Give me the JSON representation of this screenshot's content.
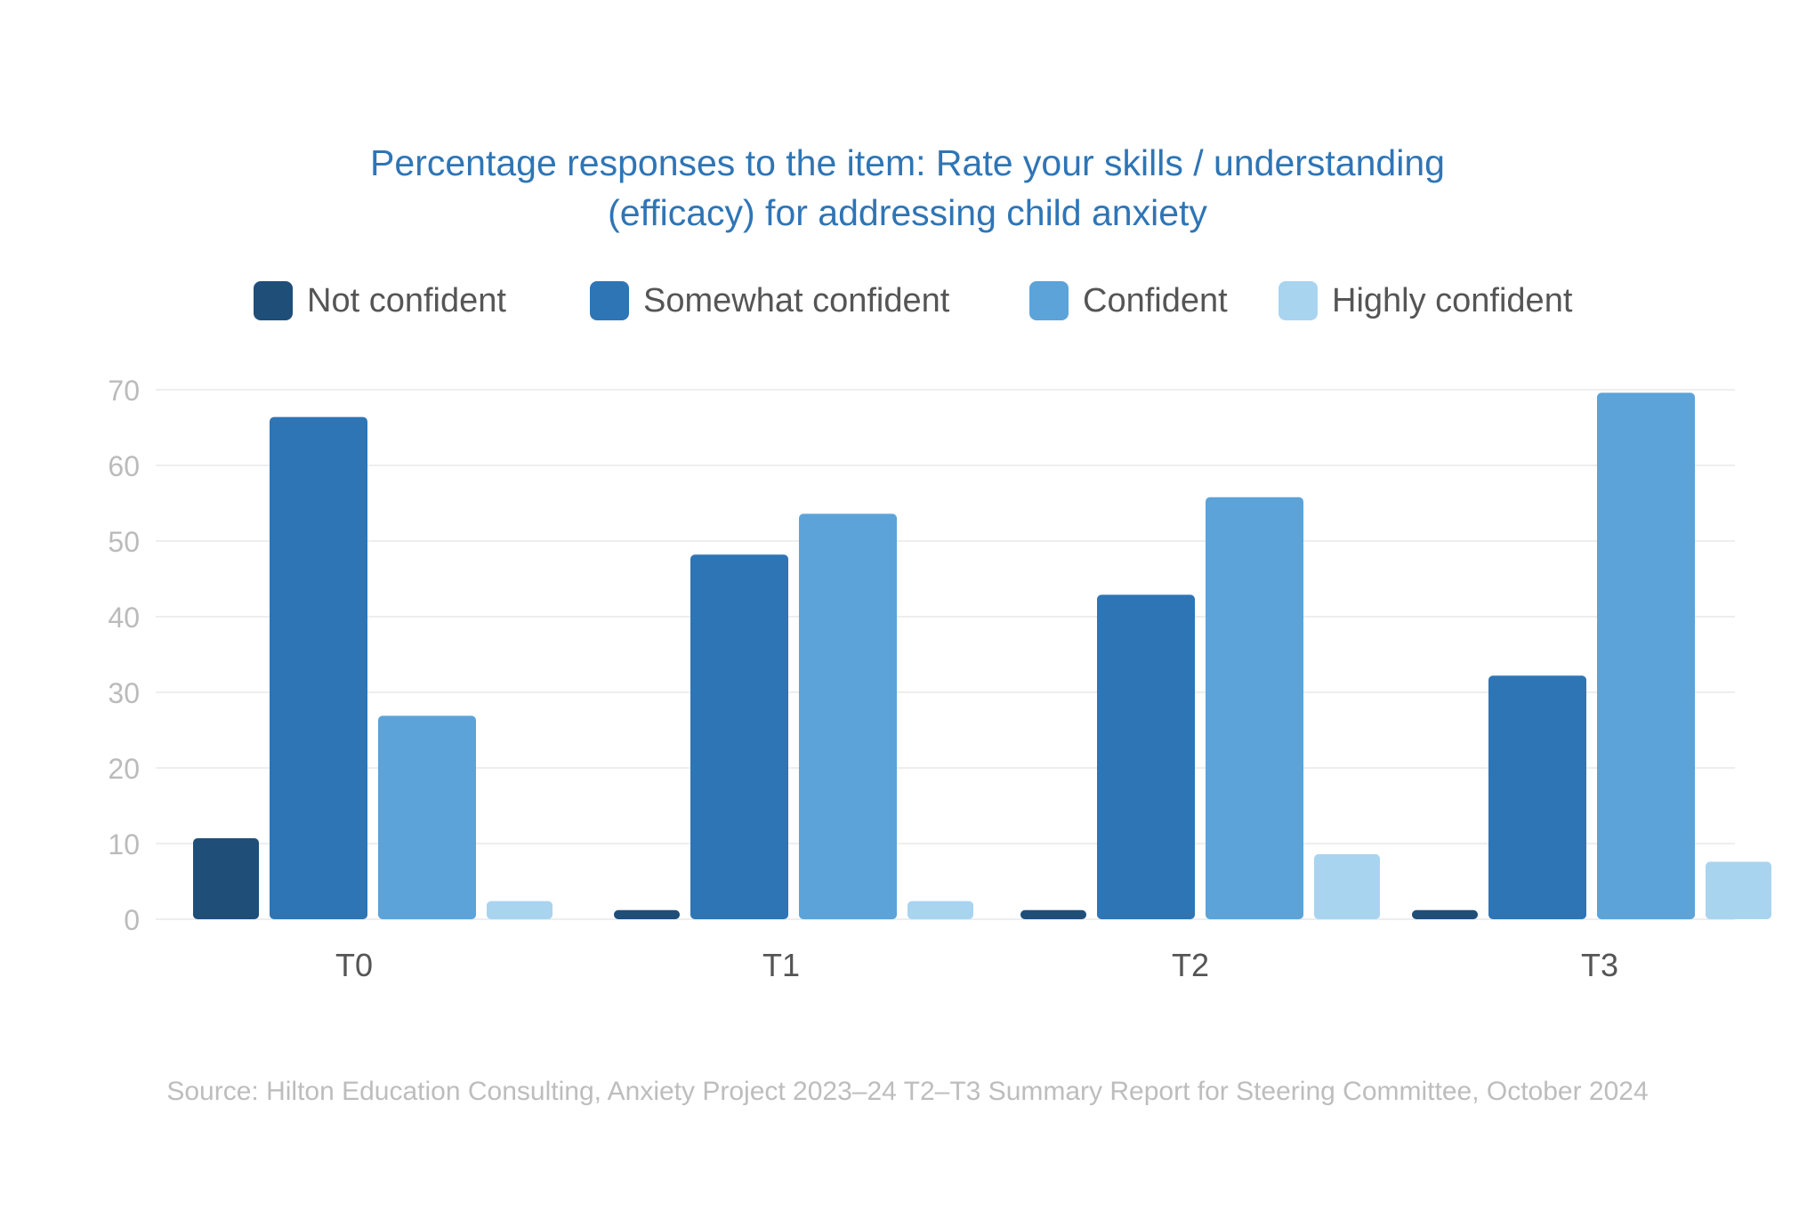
{
  "title_lines": [
    "Percentage responses to the item: Rate your skills / understanding",
    "(efficacy) for addressing child anxiety"
  ],
  "source": "Source: Hilton Education Consulting, Anxiety Project 2023–24 T2–T3 Summary Report for Steering Committee, October 2024",
  "colors": {
    "title": "#2e75b6",
    "grid": "#eeeeee",
    "tick": "#bbbbbb",
    "category": "#555555"
  },
  "chart_data": {
    "type": "bar",
    "title": "Percentage responses to the item: Rate your skills / understanding (efficacy) for addressing child anxiety",
    "categories": [
      "T0",
      "T1",
      "T2",
      "T3"
    ],
    "series": [
      {
        "name": "Not confident",
        "color": "#1f4e79",
        "values": [
          10.7,
          1.2,
          1.2,
          1.2
        ]
      },
      {
        "name": "Somewhat confident",
        "color": "#2e75b6",
        "values": [
          66.4,
          48.2,
          42.9,
          32.2
        ]
      },
      {
        "name": "Confident",
        "color": "#5ba3d9",
        "values": [
          26.9,
          53.6,
          55.8,
          69.6
        ]
      },
      {
        "name": "Highly confident",
        "color": "#a9d4f0",
        "values": [
          2.4,
          2.4,
          8.6,
          7.6
        ]
      }
    ],
    "ylim": [
      0,
      70
    ],
    "yticks": [
      0,
      10,
      20,
      30,
      40,
      50,
      60,
      70
    ],
    "xlabel": "",
    "ylabel": "",
    "grid": true,
    "legend": "top-center"
  }
}
